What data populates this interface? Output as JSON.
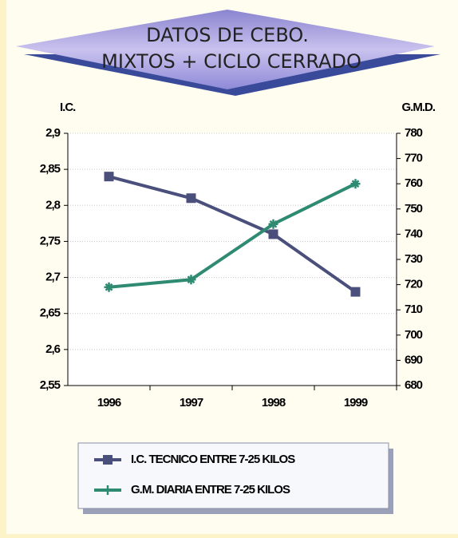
{
  "chart_data": {
    "type": "line",
    "title": "DATOS DE CEBO.",
    "subtitle": "MIXTOS + CICLO CERRADO",
    "ylabel": "I.C.",
    "y2label": "G.M.D.",
    "categories": [
      "1996",
      "1997",
      "1998",
      "1999"
    ],
    "series": [
      {
        "name": "I.C. TECNICO ENTRE 7-25 KILOS",
        "color": "#4b4f7c",
        "values": [
          2.84,
          2.81,
          2.76,
          2.68
        ]
      },
      {
        "name": "G.M. DIARIA ENTRE 7-25 KILOS",
        "color": "#2f8a72",
        "axis": "y2",
        "values": [
          719,
          722,
          744,
          760
        ]
      }
    ],
    "ylim": [
      2.55,
      2.9
    ],
    "yticks": [
      {
        "value": 2.55,
        "label": "2,55"
      },
      {
        "value": 2.6,
        "label": "2,6"
      },
      {
        "value": 2.65,
        "label": "2,65"
      },
      {
        "value": 2.7,
        "label": "2,7"
      },
      {
        "value": 2.75,
        "label": "2,75"
      },
      {
        "value": 2.8,
        "label": "2,8"
      },
      {
        "value": 2.85,
        "label": "2,85"
      },
      {
        "value": 2.9,
        "label": "2,9"
      }
    ],
    "y2lim": [
      680,
      780
    ],
    "y2ticks": [
      680,
      690,
      700,
      710,
      720,
      730,
      740,
      750,
      760,
      770,
      780
    ],
    "grid": true
  }
}
